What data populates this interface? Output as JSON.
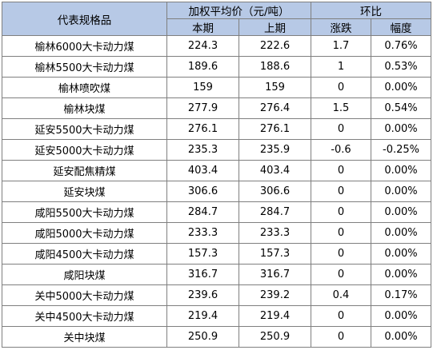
{
  "table": {
    "headers": {
      "name": "代表规格品",
      "price_group": "加权平均价（元/吨）",
      "current": "本期",
      "previous": "上期",
      "ratio_group": "环比",
      "change": "涨跌",
      "rate": "幅度"
    },
    "rows": [
      {
        "name": "榆林6000大卡动力煤",
        "current": "224.3",
        "previous": "222.6",
        "change": "1.7",
        "rate": "0.76%"
      },
      {
        "name": "榆林5500大卡动力煤",
        "current": "189.6",
        "previous": "188.6",
        "change": "1",
        "rate": "0.53%"
      },
      {
        "name": "榆林喷吹煤",
        "current": "159",
        "previous": "159",
        "change": "0",
        "rate": "0.00%"
      },
      {
        "name": "榆林块煤",
        "current": "277.9",
        "previous": "276.4",
        "change": "1.5",
        "rate": "0.54%"
      },
      {
        "name": "延安5500大卡动力煤",
        "current": "276.1",
        "previous": "276.1",
        "change": "0",
        "rate": "0.00%"
      },
      {
        "name": "延安5000大卡动力煤",
        "current": "235.3",
        "previous": "235.9",
        "change": "-0.6",
        "rate": "-0.25%"
      },
      {
        "name": "延安配焦精煤",
        "current": "403.4",
        "previous": "403.4",
        "change": "0",
        "rate": "0.00%"
      },
      {
        "name": "延安块煤",
        "current": "306.6",
        "previous": "306.6",
        "change": "0",
        "rate": "0.00%"
      },
      {
        "name": "咸阳5500大卡动力煤",
        "current": "284.7",
        "previous": "284.7",
        "change": "0",
        "rate": "0.00%"
      },
      {
        "name": "咸阳5000大卡动力煤",
        "current": "233.3",
        "previous": "233.3",
        "change": "0",
        "rate": "0.00%"
      },
      {
        "name": "咸阳4500大卡动力煤",
        "current": "157.3",
        "previous": "157.3",
        "change": "0",
        "rate": "0.00%"
      },
      {
        "name": "咸阳块煤",
        "current": "316.7",
        "previous": "316.7",
        "change": "0",
        "rate": "0.00%"
      },
      {
        "name": "关中5000大卡动力煤",
        "current": "239.6",
        "previous": "239.2",
        "change": "0.4",
        "rate": "0.17%"
      },
      {
        "name": "关中4500大卡动力煤",
        "current": "219.4",
        "previous": "219.4",
        "change": "0",
        "rate": "0.00%"
      },
      {
        "name": "关中块煤",
        "current": "250.9",
        "previous": "250.9",
        "change": "0",
        "rate": "0.00%"
      }
    ]
  },
  "colors": {
    "header_background": "#b7c9e6",
    "border": "#7f7f7f",
    "text": "#000000"
  }
}
